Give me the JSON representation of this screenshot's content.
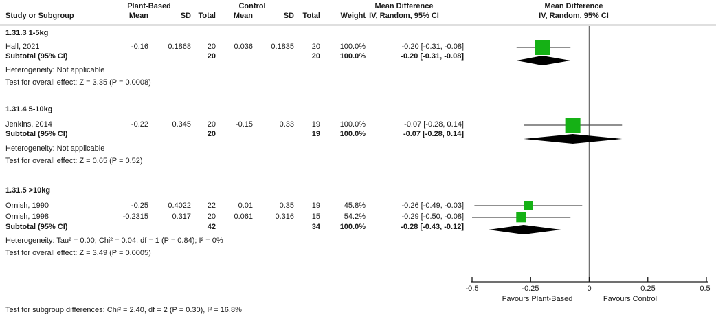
{
  "header": {
    "group1_label": "Plant-Based",
    "group2_label": "Control",
    "md_text_col": {
      "line1": "Mean Difference",
      "line2": "IV, Random, 95% CI"
    },
    "md_plot_col": {
      "line1": "Mean Difference",
      "line2": "IV, Random, 95% CI"
    },
    "study": "Study or Subgroup",
    "mean": "Mean",
    "sd": "SD",
    "total": "Total",
    "weight": "Weight"
  },
  "subgroups": [
    {
      "label": "1.31.3 1-5kg",
      "studies": [
        {
          "name": "Hall, 2021",
          "mean1": "-0.16",
          "sd1": "0.1868",
          "total1": "20",
          "mean2": "0.036",
          "sd2": "0.1835",
          "total2": "20",
          "weight": "100.0%",
          "ci": "-0.20 [-0.31, -0.08]",
          "est": -0.2,
          "lo": -0.31,
          "hi": -0.08,
          "weight_pct": 100.0
        }
      ],
      "subtotal": {
        "label": "Subtotal (95% CI)",
        "total1": "20",
        "total2": "20",
        "weight": "100.0%",
        "ci": "-0.20 [-0.31, -0.08]",
        "est": -0.2,
        "lo": -0.31,
        "hi": -0.08
      },
      "heterogeneity": "Heterogeneity: Not applicable",
      "overall": "Test for overall effect: Z = 3.35 (P = 0.0008)"
    },
    {
      "label": "1.31.4 5-10kg",
      "studies": [
        {
          "name": "Jenkins, 2014",
          "mean1": "-0.22",
          "sd1": "0.345",
          "total1": "20",
          "mean2": "-0.15",
          "sd2": "0.33",
          "total2": "19",
          "weight": "100.0%",
          "ci": "-0.07 [-0.28, 0.14]",
          "est": -0.07,
          "lo": -0.28,
          "hi": 0.14,
          "weight_pct": 100.0
        }
      ],
      "subtotal": {
        "label": "Subtotal (95% CI)",
        "total1": "20",
        "total2": "19",
        "weight": "100.0%",
        "ci": "-0.07 [-0.28, 0.14]",
        "est": -0.07,
        "lo": -0.28,
        "hi": 0.14
      },
      "heterogeneity": "Heterogeneity: Not applicable",
      "overall": "Test for overall effect: Z = 0.65 (P = 0.52)"
    },
    {
      "label": "1.31.5 >10kg",
      "studies": [
        {
          "name": "Ornish, 1990",
          "mean1": "-0.25",
          "sd1": "0.4022",
          "total1": "22",
          "mean2": "0.01",
          "sd2": "0.35",
          "total2": "19",
          "weight": "45.8%",
          "ci": "-0.26 [-0.49, -0.03]",
          "est": -0.26,
          "lo": -0.49,
          "hi": -0.03,
          "weight_pct": 45.8
        },
        {
          "name": "Ornish, 1998",
          "mean1": "-0.2315",
          "sd1": "0.317",
          "total1": "20",
          "mean2": "0.061",
          "sd2": "0.316",
          "total2": "15",
          "weight": "54.2%",
          "ci": "-0.29 [-0.50, -0.08]",
          "est": -0.29,
          "lo": -0.5,
          "hi": -0.08,
          "weight_pct": 54.2
        }
      ],
      "subtotal": {
        "label": "Subtotal (95% CI)",
        "total1": "42",
        "total2": "34",
        "weight": "100.0%",
        "ci": "-0.28 [-0.43, -0.12]",
        "est": -0.28,
        "lo": -0.43,
        "hi": -0.12
      },
      "heterogeneity": "Heterogeneity: Tau² = 0.00; Chi² = 0.04, df = 1 (P = 0.84); I² = 0%",
      "overall": "Test for overall effect: Z = 3.49 (P = 0.0005)"
    }
  ],
  "footer": "Test for subgroup differences: Chi² = 2.40, df = 2 (P = 0.30), I² = 16.8%",
  "axis": {
    "min": -0.5,
    "max": 0.5,
    "ticks": [
      {
        "value": -0.5,
        "label": "-0.5"
      },
      {
        "value": -0.25,
        "label": "-0.25"
      },
      {
        "value": 0,
        "label": "0"
      },
      {
        "value": 0.25,
        "label": "0.25"
      },
      {
        "value": 0.5,
        "label": "0.5"
      }
    ],
    "favours_left": "Favours Plant-Based",
    "favours_right": "Favours Control"
  },
  "colors": {
    "square": "#15b115",
    "diamond": "#000000",
    "ci_line": "#4d4d4d",
    "zero_line": "#6f6f6f",
    "axis_line": "#1a1a1a",
    "separator": "#000000"
  },
  "chart_data": {
    "type": "scatter",
    "chart_kind": "forest-plot-meta-analysis",
    "effect_measure": "Mean Difference",
    "model": "IV, Random, 95% CI",
    "xlim": [
      -0.5,
      0.5
    ],
    "x_ticks": [
      -0.5,
      -0.25,
      0,
      0.25,
      0.5
    ],
    "xlabel_left": "Favours Plant-Based",
    "xlabel_right": "Favours Control",
    "subgroups": [
      {
        "name": "1.31.3 1-5kg",
        "studies": [
          {
            "study": "Hall, 2021",
            "md": -0.2,
            "ci_low": -0.31,
            "ci_high": -0.08,
            "weight_pct": 100.0
          }
        ],
        "subtotal": {
          "md": -0.2,
          "ci_low": -0.31,
          "ci_high": -0.08
        },
        "heterogeneity": "Not applicable",
        "overall_effect": "Z = 3.35 (P = 0.0008)"
      },
      {
        "name": "1.31.4 5-10kg",
        "studies": [
          {
            "study": "Jenkins, 2014",
            "md": -0.07,
            "ci_low": -0.28,
            "ci_high": 0.14,
            "weight_pct": 100.0
          }
        ],
        "subtotal": {
          "md": -0.07,
          "ci_low": -0.28,
          "ci_high": 0.14
        },
        "heterogeneity": "Not applicable",
        "overall_effect": "Z = 0.65 (P = 0.52)"
      },
      {
        "name": "1.31.5 >10kg",
        "studies": [
          {
            "study": "Ornish, 1990",
            "md": -0.26,
            "ci_low": -0.49,
            "ci_high": -0.03,
            "weight_pct": 45.8
          },
          {
            "study": "Ornish, 1998",
            "md": -0.29,
            "ci_low": -0.5,
            "ci_high": -0.08,
            "weight_pct": 54.2
          }
        ],
        "subtotal": {
          "md": -0.28,
          "ci_low": -0.43,
          "ci_high": -0.12
        },
        "heterogeneity": "Tau² = 0.00; Chi² = 0.04, df = 1 (P = 0.84); I² = 0%",
        "overall_effect": "Z = 3.49 (P = 0.0005)"
      }
    ],
    "subgroup_difference": "Chi² = 2.40, df = 2 (P = 0.30), I² = 16.8%"
  }
}
